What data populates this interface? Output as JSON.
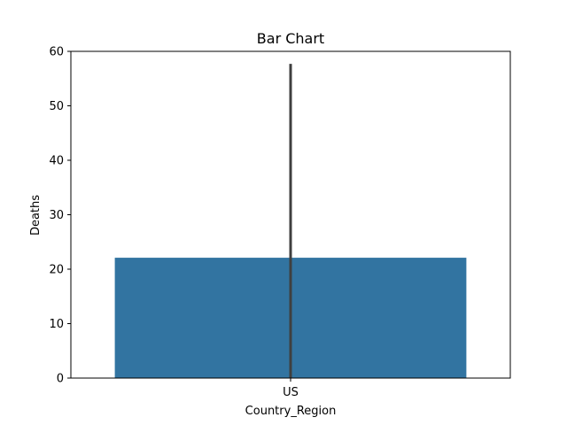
{
  "chart_data": {
    "type": "bar",
    "title": "Bar Chart",
    "xlabel": "Country_Region",
    "ylabel": "Deaths",
    "categories": [
      "US"
    ],
    "values": [
      22.1
    ],
    "error_bars": [
      {
        "low": 0,
        "high": 57.7
      }
    ],
    "ylim": [
      0,
      60
    ],
    "yticks": [
      0,
      10,
      20,
      30,
      40,
      50,
      60
    ],
    "grid": false,
    "legend": "none",
    "colors": {
      "bar": "#3274a1",
      "error_bar": "#3f3f3f",
      "axes": "#000000"
    }
  }
}
